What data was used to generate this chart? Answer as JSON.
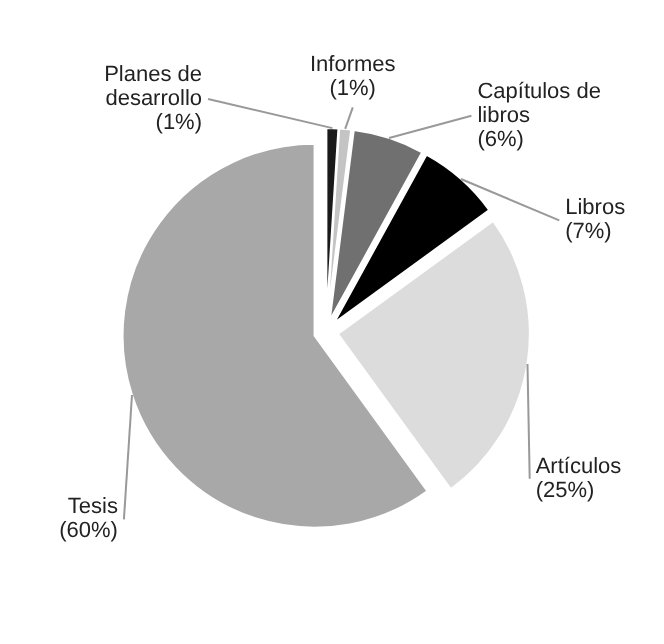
{
  "chart_data": {
    "type": "pie",
    "categories": [
      "Planes de desarrollo",
      "Informes",
      "Capítulos de libros",
      "Libros",
      "Artículos",
      "Tesis"
    ],
    "values": [
      1,
      1,
      6,
      7,
      25,
      60
    ],
    "value_labels": [
      "(1%)",
      "(1%)",
      "(6%)",
      "(7%)",
      "(25%)",
      "(60%)"
    ],
    "colors": [
      "#1a1a1a",
      "#c4c4c4",
      "#707070",
      "#000000",
      "#dcdcdc",
      "#a8a8a8"
    ]
  }
}
